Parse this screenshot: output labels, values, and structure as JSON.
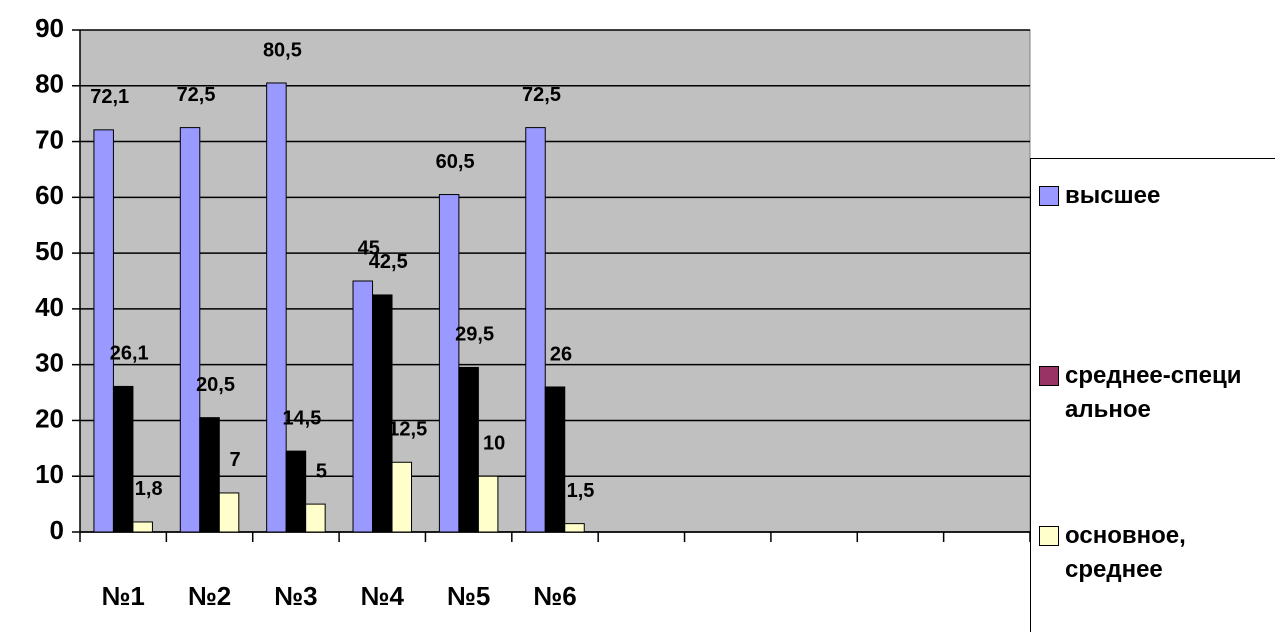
{
  "chart_data": {
    "type": "bar",
    "categories": [
      "№1",
      "№2",
      "№3",
      "№4",
      "№5",
      "№6",
      null,
      null,
      null,
      null,
      null
    ],
    "series": [
      {
        "name": "высшее",
        "color": "#9999ff",
        "values": [
          72.1,
          72.5,
          80.5,
          45,
          60.5,
          72.5,
          null,
          null,
          null,
          null,
          null
        ],
        "value_labels": [
          "72,1",
          "72,5",
          "80,5",
          "45",
          "60,5",
          "72,5",
          null,
          null,
          null,
          null,
          null
        ]
      },
      {
        "name": "среднее-специальное",
        "color": "#000000",
        "legend_color": "#993366",
        "values": [
          26.1,
          20.5,
          14.5,
          42.5,
          29.5,
          26,
          null,
          null,
          null,
          null,
          null
        ],
        "value_labels": [
          "26,1",
          "20,5",
          "14,5",
          "42,5",
          "29,5",
          "26",
          null,
          null,
          null,
          null,
          null
        ]
      },
      {
        "name": "основное, среднее",
        "color": "#ffffcc",
        "values": [
          1.8,
          7,
          5,
          12.5,
          10,
          1.5,
          null,
          null,
          null,
          null,
          null
        ],
        "value_labels": [
          "1,8",
          "7",
          "5",
          "12,5",
          "10",
          "1,5",
          null,
          null,
          null,
          null,
          null
        ]
      }
    ],
    "ylim": [
      0,
      90
    ],
    "yticks": [
      0,
      10,
      20,
      30,
      40,
      50,
      60,
      70,
      80,
      90
    ],
    "grid": true,
    "plot_background": "#c0c0c0"
  }
}
